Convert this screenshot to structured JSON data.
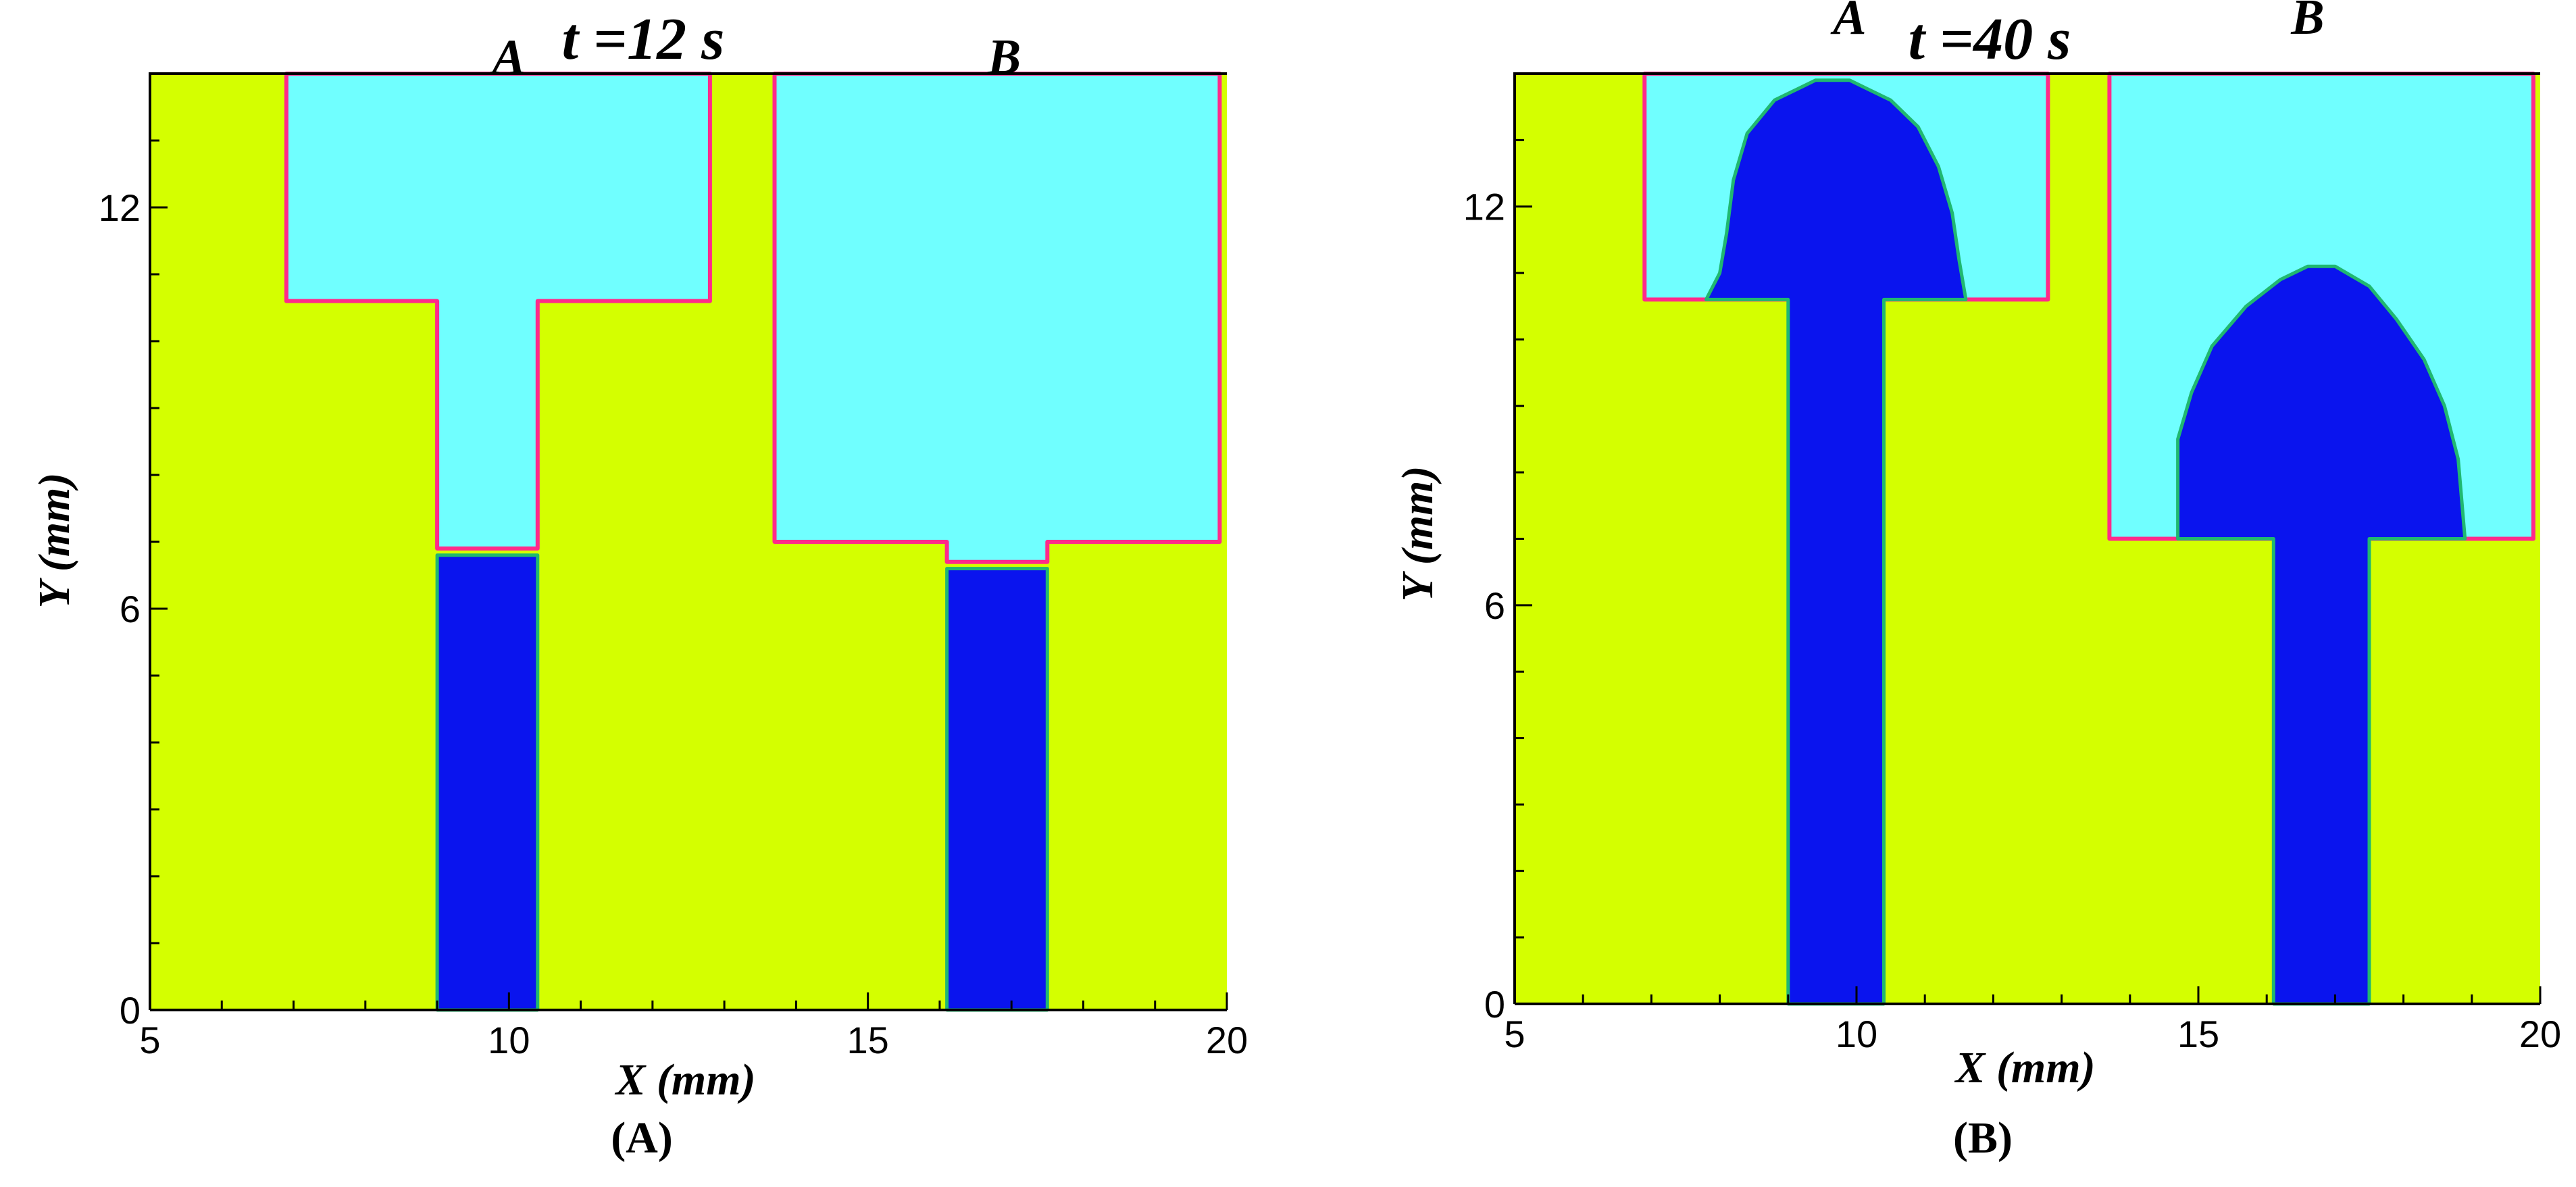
{
  "colors": {
    "background_fluid": "#d4ff00",
    "ambient_zone": "#70ffff",
    "front_fluid": "#0a14ee",
    "interface_line": "#ff2a8a",
    "axis": "#000000"
  },
  "chart_data": [
    {
      "type": "heatmap",
      "title": "t =12 s",
      "caption": "(A)",
      "xlabel": "X (mm)",
      "ylabel": "Y (mm)",
      "xlim": [
        5,
        20
      ],
      "ylim": [
        0,
        14
      ],
      "xticks": [
        5,
        10,
        15,
        20
      ],
      "yticks": [
        0,
        6,
        12
      ],
      "region_labels": [
        {
          "text": "A",
          "x": 10.0,
          "y": 14.0
        },
        {
          "text": "B",
          "x": 16.9,
          "y": 14.0
        }
      ],
      "ambient_zones": [
        [
          [
            6.9,
            15
          ],
          [
            12.8,
            15
          ],
          [
            12.8,
            10.6
          ],
          [
            10.4,
            10.6
          ],
          [
            10.4,
            6.9
          ],
          [
            9.0,
            6.9
          ],
          [
            9.0,
            10.6
          ],
          [
            6.9,
            10.6
          ]
        ],
        [
          [
            13.7,
            15
          ],
          [
            19.9,
            15
          ],
          [
            19.9,
            7.0
          ],
          [
            17.5,
            7.0
          ],
          [
            17.5,
            6.7
          ],
          [
            16.1,
            6.7
          ],
          [
            16.1,
            7.0
          ],
          [
            13.7,
            7.0
          ]
        ]
      ],
      "front_regions": [
        [
          [
            9.0,
            0
          ],
          [
            10.4,
            0
          ],
          [
            10.4,
            6.8
          ],
          [
            9.0,
            6.8
          ]
        ],
        [
          [
            16.1,
            0
          ],
          [
            17.5,
            0
          ],
          [
            17.5,
            6.6
          ],
          [
            16.1,
            6.6
          ]
        ]
      ]
    },
    {
      "type": "heatmap",
      "title": "t =40 s",
      "caption": "(B)",
      "xlabel": "X (mm)",
      "ylabel": "Y (mm)",
      "xlim": [
        5,
        20
      ],
      "ylim": [
        0,
        14
      ],
      "xticks": [
        5,
        10,
        15,
        20
      ],
      "yticks": [
        0,
        6,
        12
      ],
      "region_labels": [
        {
          "text": "A",
          "x": 9.9,
          "y": 14.6
        },
        {
          "text": "B",
          "x": 16.6,
          "y": 14.6
        }
      ],
      "ambient_zones": [
        [
          [
            6.9,
            15
          ],
          [
            12.8,
            15
          ],
          [
            12.8,
            10.6
          ],
          [
            6.9,
            10.6
          ]
        ],
        [
          [
            13.7,
            15
          ],
          [
            19.9,
            15
          ],
          [
            19.9,
            7.0
          ],
          [
            13.7,
            7.0
          ]
        ]
      ],
      "front_regions": [
        [
          [
            9.0,
            0
          ],
          [
            10.4,
            0
          ],
          [
            10.4,
            10.6
          ],
          [
            11.6,
            10.6
          ],
          [
            11.5,
            11.2
          ],
          [
            11.4,
            11.9
          ],
          [
            11.2,
            12.6
          ],
          [
            10.9,
            13.2
          ],
          [
            10.5,
            13.6
          ],
          [
            9.9,
            13.9
          ],
          [
            9.4,
            13.9
          ],
          [
            8.8,
            13.6
          ],
          [
            8.4,
            13.1
          ],
          [
            8.2,
            12.4
          ],
          [
            8.1,
            11.6
          ],
          [
            8.0,
            11.0
          ],
          [
            7.8,
            10.6
          ],
          [
            9.0,
            10.6
          ]
        ],
        [
          [
            16.1,
            0
          ],
          [
            17.5,
            0
          ],
          [
            17.5,
            7.0
          ],
          [
            18.9,
            7.0
          ],
          [
            18.8,
            8.2
          ],
          [
            18.6,
            9.0
          ],
          [
            18.3,
            9.7
          ],
          [
            17.9,
            10.3
          ],
          [
            17.5,
            10.8
          ],
          [
            17.0,
            11.1
          ],
          [
            16.6,
            11.1
          ],
          [
            16.2,
            10.9
          ],
          [
            15.7,
            10.5
          ],
          [
            15.2,
            9.9
          ],
          [
            14.9,
            9.2
          ],
          [
            14.7,
            8.5
          ],
          [
            14.7,
            7.0
          ],
          [
            16.1,
            7.0
          ]
        ]
      ]
    }
  ]
}
